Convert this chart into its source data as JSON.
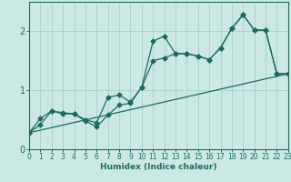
{
  "xlabel": "Humidex (Indice chaleur)",
  "bg_color": "#cce8e5",
  "line_color": "#1a6b5e",
  "grid_color": "#aad4d0",
  "x_ticks": [
    0,
    1,
    2,
    3,
    4,
    5,
    6,
    7,
    8,
    9,
    10,
    11,
    12,
    13,
    14,
    15,
    16,
    17,
    18,
    19,
    20,
    21,
    22,
    23
  ],
  "y_ticks": [
    0,
    1,
    2
  ],
  "xlim": [
    0,
    23
  ],
  "ylim": [
    0,
    2.5
  ],
  "series1_x": [
    0,
    1,
    2,
    3,
    4,
    5,
    6,
    7,
    8,
    9,
    10,
    11,
    12,
    13,
    14,
    15,
    16,
    17,
    18,
    19,
    20,
    21,
    22,
    23
  ],
  "series1_y": [
    0.28,
    0.52,
    0.65,
    0.62,
    0.6,
    0.5,
    0.45,
    0.88,
    0.92,
    0.8,
    1.05,
    1.83,
    1.92,
    1.62,
    1.62,
    1.58,
    1.52,
    1.72,
    2.05,
    2.28,
    2.02,
    2.02,
    1.28,
    1.28
  ],
  "series2_x": [
    0,
    1,
    2,
    3,
    4,
    5,
    6,
    7,
    8,
    9,
    10,
    11,
    12,
    13,
    14,
    15,
    16,
    17,
    18,
    19,
    20,
    21,
    22,
    23
  ],
  "series2_y": [
    0.28,
    0.42,
    0.65,
    0.6,
    0.6,
    0.48,
    0.38,
    0.58,
    0.75,
    0.78,
    1.05,
    1.5,
    1.55,
    1.62,
    1.62,
    1.58,
    1.52,
    1.72,
    2.05,
    2.28,
    2.02,
    2.02,
    1.28,
    1.28
  ],
  "series3_x": [
    0,
    23
  ],
  "series3_y": [
    0.28,
    1.28
  ],
  "marker": "D",
  "markersize": 2.5,
  "linewidth": 0.9,
  "tick_fontsize": 5.5,
  "label_fontsize": 6.5
}
